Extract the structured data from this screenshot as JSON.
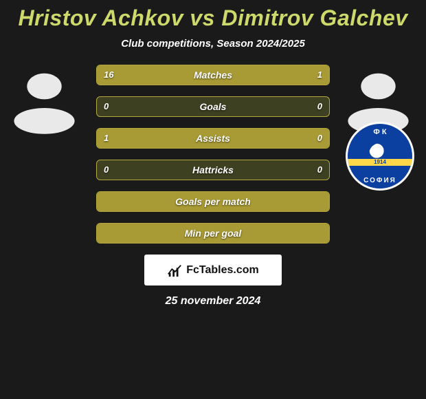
{
  "title": "Hristov Achkov vs Dimitrov Galchev",
  "subtitle": "Club competitions, Season 2024/2025",
  "colors": {
    "accent": "#a89a34",
    "row_bg": "#3e4022",
    "row_border": "#b5a93d",
    "title": "#cdd96a",
    "page_bg": "#1a1a1a",
    "badge_primary": "#0b3fa0",
    "badge_stripe": "#ffd84a"
  },
  "players": {
    "left": {
      "name": "Hristov Achkov",
      "club_badge_visible": false
    },
    "right": {
      "name": "Dimitrov Galchev",
      "club_badge_visible": true,
      "club_top_text": "Ф   К",
      "club_year": "1914",
      "club_city": "СОФИЯ"
    }
  },
  "stats": [
    {
      "label": "Matches",
      "left_val": "16",
      "right_val": "1",
      "left_pct": 94,
      "right_pct": 6,
      "show_vals": true
    },
    {
      "label": "Goals",
      "left_val": "0",
      "right_val": "0",
      "left_pct": 0,
      "right_pct": 0,
      "show_vals": true
    },
    {
      "label": "Assists",
      "left_val": "1",
      "right_val": "0",
      "left_pct": 100,
      "right_pct": 0,
      "show_vals": true
    },
    {
      "label": "Hattricks",
      "left_val": "0",
      "right_val": "0",
      "left_pct": 0,
      "right_pct": 0,
      "show_vals": true
    },
    {
      "label": "Goals per match",
      "left_val": "",
      "right_val": "",
      "left_pct": 100,
      "right_pct": 0,
      "show_vals": false
    },
    {
      "label": "Min per goal",
      "left_val": "",
      "right_val": "",
      "left_pct": 100,
      "right_pct": 0,
      "show_vals": false
    }
  ],
  "brand": "FcTables.com",
  "date": "25 november 2024"
}
